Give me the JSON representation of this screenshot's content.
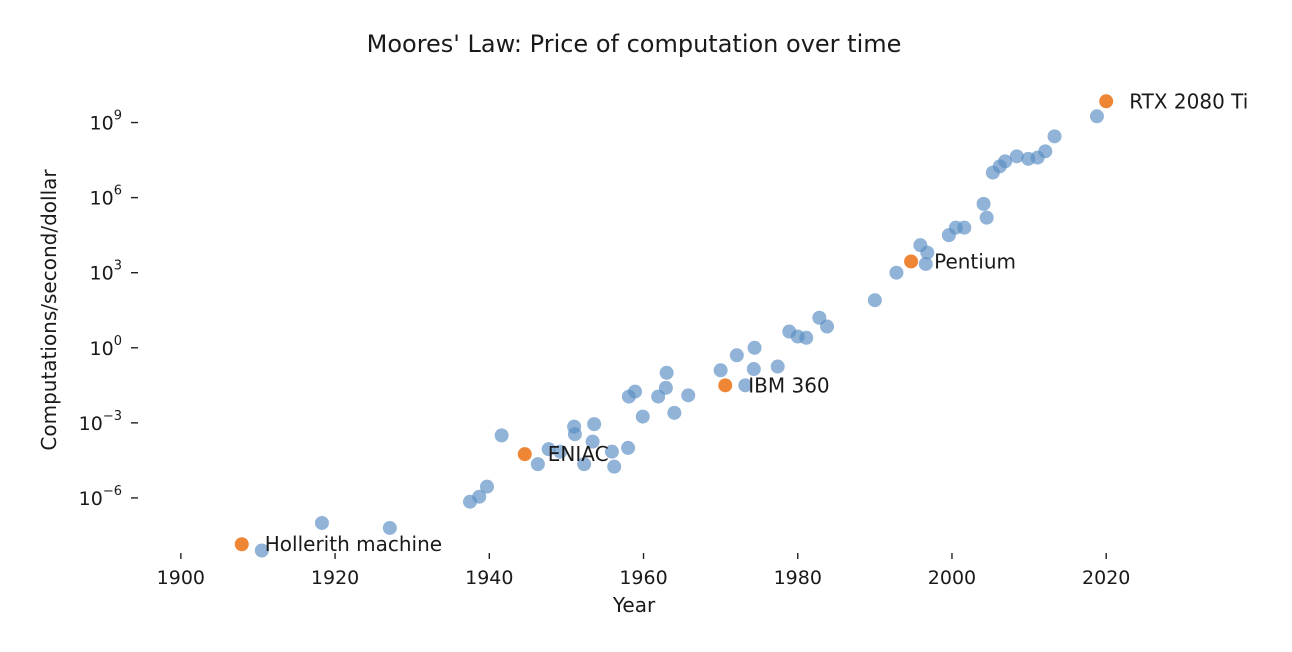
{
  "chart_data": {
    "type": "scatter",
    "title": "Moores' Law: Price of computation over time",
    "xlabel": "Year",
    "ylabel": "Computations/second/dollar",
    "xlim": [
      1896,
      2038
    ],
    "ylim": [
      -8.2,
      10.9
    ],
    "yscale": "log10",
    "xticks": [
      1900,
      1920,
      1940,
      1960,
      1980,
      2000,
      2020
    ],
    "yticks": [
      {
        "exp": -6,
        "base": "10",
        "sup": "−6"
      },
      {
        "exp": -3,
        "base": "10",
        "sup": "−3"
      },
      {
        "exp": 0,
        "base": "10",
        "sup": "0"
      },
      {
        "exp": 3,
        "base": "10",
        "sup": "3"
      },
      {
        "exp": 6,
        "base": "10",
        "sup": "6"
      },
      {
        "exp": 9,
        "base": "10",
        "sup": "9"
      }
    ],
    "grid": false,
    "colors": {
      "machines": "#5b8fc4",
      "highlight": "#ef8636"
    },
    "series": [
      {
        "role": "machines",
        "points": [
          [
            1910.5,
            -8.1
          ],
          [
            1918.3,
            -7.0
          ],
          [
            1927.1,
            -7.2
          ],
          [
            1937.5,
            -6.15
          ],
          [
            1938.7,
            -5.95
          ],
          [
            1939.7,
            -5.55
          ],
          [
            1941.6,
            -3.5
          ],
          [
            1946.3,
            -4.65
          ],
          [
            1947.7,
            -4.05
          ],
          [
            1949.2,
            -4.15
          ],
          [
            1951.0,
            -3.15
          ],
          [
            1951.1,
            -3.45
          ],
          [
            1952.3,
            -4.65
          ],
          [
            1953.4,
            -3.75
          ],
          [
            1953.6,
            -3.05
          ],
          [
            1955.9,
            -4.15
          ],
          [
            1956.2,
            -4.75
          ],
          [
            1958.0,
            -4.0
          ],
          [
            1958.1,
            -1.95
          ],
          [
            1958.9,
            -1.75
          ],
          [
            1959.9,
            -2.75
          ],
          [
            1961.9,
            -1.95
          ],
          [
            1962.9,
            -1.6
          ],
          [
            1963.0,
            -1.0
          ],
          [
            1964.0,
            -2.6
          ],
          [
            1965.8,
            -1.9
          ],
          [
            1970.0,
            -0.9
          ],
          [
            1972.1,
            -0.3
          ],
          [
            1973.2,
            -1.5
          ],
          [
            1974.3,
            -0.85
          ],
          [
            1974.4,
            0.0
          ],
          [
            1977.4,
            -0.75
          ],
          [
            1978.9,
            0.65
          ],
          [
            1980.0,
            0.45
          ],
          [
            1981.1,
            0.4
          ],
          [
            1982.8,
            1.2
          ],
          [
            1983.8,
            0.85
          ],
          [
            1990.0,
            1.9
          ],
          [
            1992.8,
            3.0
          ],
          [
            1995.9,
            4.1
          ],
          [
            1996.6,
            3.35
          ],
          [
            1996.8,
            3.8
          ],
          [
            1999.6,
            4.5
          ],
          [
            2000.5,
            4.8
          ],
          [
            2001.6,
            4.8
          ],
          [
            2004.1,
            5.75
          ],
          [
            2004.5,
            5.2
          ],
          [
            2005.3,
            7.0
          ],
          [
            2006.2,
            7.25
          ],
          [
            2006.9,
            7.45
          ],
          [
            2008.4,
            7.65
          ],
          [
            2009.9,
            7.55
          ],
          [
            2011.1,
            7.6
          ],
          [
            2012.1,
            7.85
          ],
          [
            2013.3,
            8.45
          ],
          [
            2018.8,
            9.25
          ]
        ]
      },
      {
        "role": "highlight",
        "points": [
          [
            1907.9,
            -7.85
          ],
          [
            1944.6,
            -4.25
          ],
          [
            1970.6,
            -1.5
          ],
          [
            1994.7,
            3.45
          ],
          [
            2020.0,
            9.85
          ]
        ]
      }
    ],
    "annotations": [
      {
        "text": "Hollerith machine",
        "x": 1907.9,
        "y": -7.85
      },
      {
        "text": "ENIAC",
        "x": 1944.6,
        "y": -4.25
      },
      {
        "text": "IBM 360",
        "x": 1970.6,
        "y": -1.5
      },
      {
        "text": "Pentium",
        "x": 1994.7,
        "y": 3.45
      },
      {
        "text": "RTX 2080 Ti",
        "x": 2020.0,
        "y": 9.85
      }
    ]
  }
}
